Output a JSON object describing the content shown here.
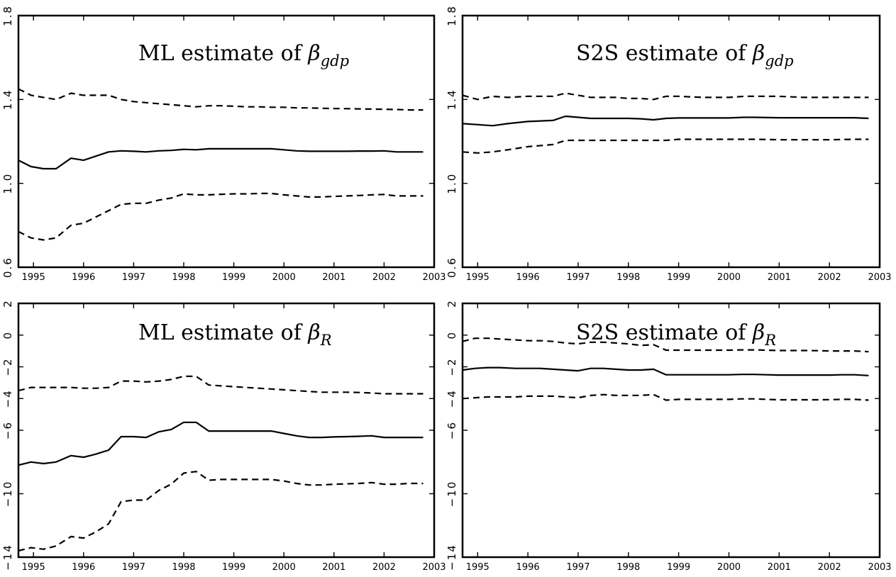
{
  "chart_data": [
    {
      "type": "line",
      "title": "ML estimate of βgdp",
      "title_parts": {
        "text": "ML estimate of ",
        "symbol": "β",
        "subscript": "gdp"
      },
      "xlim": [
        1994.7,
        2003
      ],
      "ylim": [
        0.6,
        1.8
      ],
      "xticks": [
        "1995",
        "1996",
        "1997",
        "1998",
        "1999",
        "2000",
        "2001",
        "2002",
        "2003"
      ],
      "yticks": [
        "0.6",
        "1.0",
        "1.4",
        "1.8"
      ],
      "grid": false,
      "x": [
        1994.7,
        1994.95,
        1995.2,
        1995.45,
        1995.75,
        1996.0,
        1996.25,
        1996.5,
        1996.75,
        1997.0,
        1997.25,
        1997.5,
        1997.75,
        1998.0,
        1998.25,
        1998.5,
        1998.75,
        1999.0,
        1999.25,
        1999.5,
        1999.75,
        2000.0,
        2000.25,
        2000.5,
        2000.75,
        2001.0,
        2001.25,
        2001.5,
        2001.75,
        2002.0,
        2002.25,
        2002.5,
        2002.78
      ],
      "series": [
        {
          "style": "solid",
          "values": [
            1.11,
            1.08,
            1.07,
            1.07,
            1.12,
            1.11,
            1.13,
            1.15,
            1.155,
            1.153,
            1.15,
            1.155,
            1.157,
            1.162,
            1.16,
            1.165,
            1.165,
            1.165,
            1.165,
            1.165,
            1.165,
            1.16,
            1.155,
            1.153,
            1.153,
            1.153,
            1.153,
            1.154,
            1.154,
            1.155,
            1.15,
            1.15,
            1.15
          ]
        },
        {
          "style": "dashed",
          "values": [
            1.45,
            1.42,
            1.41,
            1.4,
            1.43,
            1.42,
            1.42,
            1.42,
            1.4,
            1.39,
            1.385,
            1.38,
            1.375,
            1.37,
            1.365,
            1.37,
            1.37,
            1.368,
            1.365,
            1.365,
            1.363,
            1.363,
            1.36,
            1.36,
            1.358,
            1.357,
            1.356,
            1.355,
            1.354,
            1.353,
            1.352,
            1.35,
            1.35
          ]
        },
        {
          "style": "dashed",
          "values": [
            0.77,
            0.74,
            0.73,
            0.74,
            0.8,
            0.81,
            0.84,
            0.87,
            0.9,
            0.905,
            0.905,
            0.92,
            0.93,
            0.95,
            0.945,
            0.945,
            0.948,
            0.95,
            0.95,
            0.952,
            0.952,
            0.945,
            0.94,
            0.935,
            0.935,
            0.938,
            0.94,
            0.942,
            0.945,
            0.947,
            0.94,
            0.94,
            0.94
          ]
        }
      ]
    },
    {
      "type": "line",
      "title": "S2S estimate of βgdp",
      "title_parts": {
        "text": "S2S estimate of ",
        "symbol": "β",
        "subscript": "gdp"
      },
      "xlim": [
        1994.7,
        2003
      ],
      "ylim": [
        0.6,
        1.8
      ],
      "xticks": [
        "1995",
        "1996",
        "1997",
        "1998",
        "1999",
        "2000",
        "2001",
        "2002",
        "2003"
      ],
      "yticks": [
        "0.6",
        "1.0",
        "1.4",
        "1.8"
      ],
      "grid": false,
      "x": [
        1994.7,
        1995.0,
        1995.3,
        1995.6,
        1996.0,
        1996.5,
        1996.75,
        1997.0,
        1997.25,
        1997.5,
        1997.75,
        1998.0,
        1998.25,
        1998.5,
        1998.75,
        1999.0,
        1999.5,
        2000.0,
        2000.3,
        2000.5,
        2001.0,
        2001.5,
        2002.0,
        2002.5,
        2002.78
      ],
      "series": [
        {
          "style": "solid",
          "values": [
            1.285,
            1.28,
            1.275,
            1.285,
            1.295,
            1.3,
            1.32,
            1.315,
            1.31,
            1.31,
            1.31,
            1.31,
            1.308,
            1.303,
            1.31,
            1.312,
            1.312,
            1.312,
            1.315,
            1.315,
            1.313,
            1.313,
            1.313,
            1.313,
            1.31
          ]
        },
        {
          "style": "dashed",
          "values": [
            1.42,
            1.4,
            1.415,
            1.41,
            1.415,
            1.415,
            1.43,
            1.42,
            1.41,
            1.41,
            1.41,
            1.405,
            1.405,
            1.4,
            1.415,
            1.415,
            1.41,
            1.41,
            1.415,
            1.415,
            1.415,
            1.41,
            1.41,
            1.41,
            1.41
          ]
        },
        {
          "style": "dashed",
          "values": [
            1.15,
            1.145,
            1.15,
            1.16,
            1.175,
            1.185,
            1.205,
            1.205,
            1.205,
            1.205,
            1.205,
            1.205,
            1.205,
            1.205,
            1.205,
            1.21,
            1.21,
            1.21,
            1.21,
            1.21,
            1.208,
            1.208,
            1.208,
            1.21,
            1.21
          ]
        }
      ]
    },
    {
      "type": "line",
      "title": "ML estimate of βR",
      "title_parts": {
        "text": "ML estimate of ",
        "symbol": "β",
        "subscript": "R"
      },
      "xlim": [
        1994.7,
        2003
      ],
      "ylim": [
        -14,
        2
      ],
      "xticks": [
        "1995",
        "1996",
        "1997",
        "1998",
        "1999",
        "2000",
        "2001",
        "2002",
        "2003"
      ],
      "yticks": [
        "−14",
        "−10",
        "−6",
        "−4",
        "−2",
        "0",
        "2"
      ],
      "ytick_values": [
        -14,
        -10,
        -6,
        -4,
        -2,
        0,
        2
      ],
      "grid": false,
      "x": [
        1994.7,
        1994.95,
        1995.2,
        1995.45,
        1995.75,
        1996.0,
        1996.25,
        1996.5,
        1996.75,
        1997.0,
        1997.25,
        1997.5,
        1997.75,
        1998.0,
        1998.25,
        1998.5,
        1998.75,
        1999.0,
        1999.25,
        1999.5,
        1999.75,
        2000.0,
        2000.25,
        2000.5,
        2000.75,
        2001.0,
        2001.25,
        2001.5,
        2001.75,
        2002.0,
        2002.25,
        2002.5,
        2002.78
      ],
      "series": [
        {
          "style": "solid",
          "values": [
            -8.2,
            -8.0,
            -8.1,
            -8.0,
            -7.6,
            -7.7,
            -7.5,
            -7.25,
            -6.4,
            -6.4,
            -6.45,
            -6.1,
            -5.95,
            -5.5,
            -5.5,
            -6.05,
            -6.05,
            -6.05,
            -6.05,
            -6.05,
            -6.05,
            -6.2,
            -6.35,
            -6.45,
            -6.45,
            -6.42,
            -6.4,
            -6.38,
            -6.35,
            -6.45,
            -6.45,
            -6.45,
            -6.45
          ]
        },
        {
          "style": "dashed",
          "values": [
            -3.5,
            -3.3,
            -3.3,
            -3.3,
            -3.3,
            -3.35,
            -3.35,
            -3.3,
            -2.9,
            -2.9,
            -2.95,
            -2.9,
            -2.8,
            -2.6,
            -2.6,
            -3.15,
            -3.2,
            -3.25,
            -3.3,
            -3.35,
            -3.4,
            -3.45,
            -3.5,
            -3.55,
            -3.6,
            -3.6,
            -3.6,
            -3.62,
            -3.65,
            -3.7,
            -3.7,
            -3.7,
            -3.7
          ]
        },
        {
          "style": "dashed",
          "values": [
            -13.6,
            -13.4,
            -13.5,
            -13.3,
            -12.7,
            -12.8,
            -12.4,
            -11.9,
            -10.5,
            -10.4,
            -10.4,
            -9.8,
            -9.4,
            -8.7,
            -8.6,
            -9.15,
            -9.1,
            -9.1,
            -9.1,
            -9.1,
            -9.1,
            -9.2,
            -9.35,
            -9.45,
            -9.45,
            -9.4,
            -9.38,
            -9.35,
            -9.3,
            -9.4,
            -9.4,
            -9.35,
            -9.35
          ]
        }
      ]
    },
    {
      "type": "line",
      "title": "S2S estimate of βR",
      "title_parts": {
        "text": "S2S estimate of ",
        "symbol": "β",
        "subscript": "R"
      },
      "xlim": [
        1994.7,
        2003
      ],
      "ylim": [
        -14,
        2
      ],
      "xticks": [
        "1995",
        "1996",
        "1997",
        "1998",
        "1999",
        "2000",
        "2001",
        "2002",
        "2003"
      ],
      "yticks": [
        "−14",
        "−10",
        "−6",
        "−4",
        "−2",
        "0",
        "2"
      ],
      "ytick_values": [
        -14,
        -10,
        -6,
        -4,
        -2,
        0,
        2
      ],
      "grid": false,
      "x": [
        1994.7,
        1994.95,
        1995.2,
        1995.45,
        1995.75,
        1996.0,
        1996.25,
        1996.5,
        1996.75,
        1997.0,
        1997.25,
        1997.5,
        1997.75,
        1998.0,
        1998.25,
        1998.5,
        1998.75,
        1999.0,
        1999.25,
        1999.5,
        1999.75,
        2000.0,
        2000.25,
        2000.5,
        2000.75,
        2001.0,
        2001.25,
        2001.5,
        2001.75,
        2002.0,
        2002.25,
        2002.5,
        2002.78
      ],
      "series": [
        {
          "style": "solid",
          "values": [
            -2.2,
            -2.1,
            -2.05,
            -2.05,
            -2.1,
            -2.1,
            -2.1,
            -2.15,
            -2.2,
            -2.25,
            -2.1,
            -2.1,
            -2.15,
            -2.2,
            -2.2,
            -2.15,
            -2.5,
            -2.5,
            -2.5,
            -2.5,
            -2.5,
            -2.5,
            -2.48,
            -2.48,
            -2.5,
            -2.52,
            -2.52,
            -2.52,
            -2.52,
            -2.52,
            -2.5,
            -2.5,
            -2.55
          ]
        },
        {
          "style": "dashed",
          "values": [
            -0.4,
            -0.2,
            -0.2,
            -0.25,
            -0.3,
            -0.35,
            -0.35,
            -0.4,
            -0.5,
            -0.55,
            -0.45,
            -0.45,
            -0.5,
            -0.55,
            -0.65,
            -0.6,
            -0.95,
            -0.95,
            -0.95,
            -0.95,
            -0.95,
            -0.95,
            -0.93,
            -0.93,
            -0.95,
            -0.97,
            -0.97,
            -0.97,
            -0.98,
            -1.0,
            -1.0,
            -1.0,
            -1.05
          ]
        },
        {
          "style": "dashed",
          "values": [
            -4.0,
            -3.95,
            -3.9,
            -3.9,
            -3.9,
            -3.85,
            -3.85,
            -3.85,
            -3.9,
            -3.95,
            -3.8,
            -3.75,
            -3.8,
            -3.8,
            -3.8,
            -3.75,
            -4.1,
            -4.05,
            -4.05,
            -4.05,
            -4.05,
            -4.05,
            -4.02,
            -4.02,
            -4.05,
            -4.08,
            -4.08,
            -4.08,
            -4.08,
            -4.07,
            -4.05,
            -4.05,
            -4.1
          ]
        }
      ]
    }
  ]
}
